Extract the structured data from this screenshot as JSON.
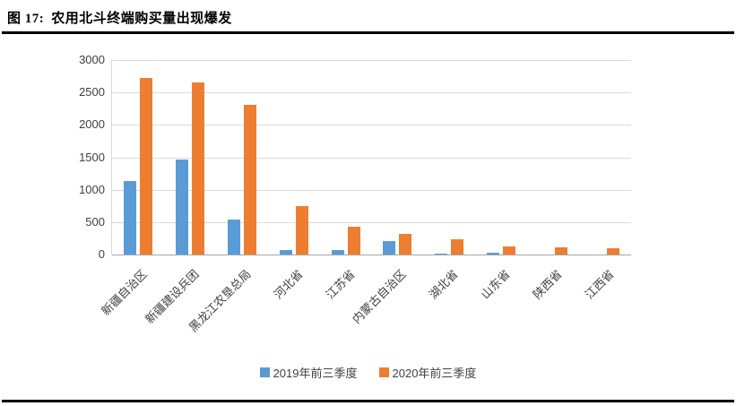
{
  "header": {
    "figure_label": "图 17:",
    "title": "农用北斗终端购买量出现爆发"
  },
  "chart_data": {
    "type": "bar",
    "title": "农用北斗终端购买量出现爆发",
    "categories": [
      "新疆自治区",
      "新疆建设兵团",
      "黑龙江农垦总局",
      "河北省",
      "江苏省",
      "内蒙古自治区",
      "湖北省",
      "山东省",
      "陕西省",
      "江西省"
    ],
    "series": [
      {
        "name": "2019年前三季度",
        "color": "#5B9BD5",
        "values": [
          1130,
          1470,
          540,
          70,
          70,
          210,
          10,
          30,
          0,
          0
        ]
      },
      {
        "name": "2020年前三季度",
        "color": "#ED7D31",
        "values": [
          2730,
          2650,
          2310,
          750,
          430,
          320,
          230,
          120,
          110,
          100
        ]
      }
    ],
    "ylim": [
      0,
      3000
    ],
    "ytick_step": 500,
    "yticks": [
      "0",
      "500",
      "1000",
      "1500",
      "2000",
      "2500",
      "3000"
    ],
    "grid": true,
    "legend_position": "bottom"
  },
  "colors": {
    "series_2019": "#5B9BD5",
    "series_2020": "#ED7D31",
    "gridline": "#D9D9D9",
    "axis": "#A6A6A6",
    "rule": "#000000",
    "text": "#404040"
  }
}
